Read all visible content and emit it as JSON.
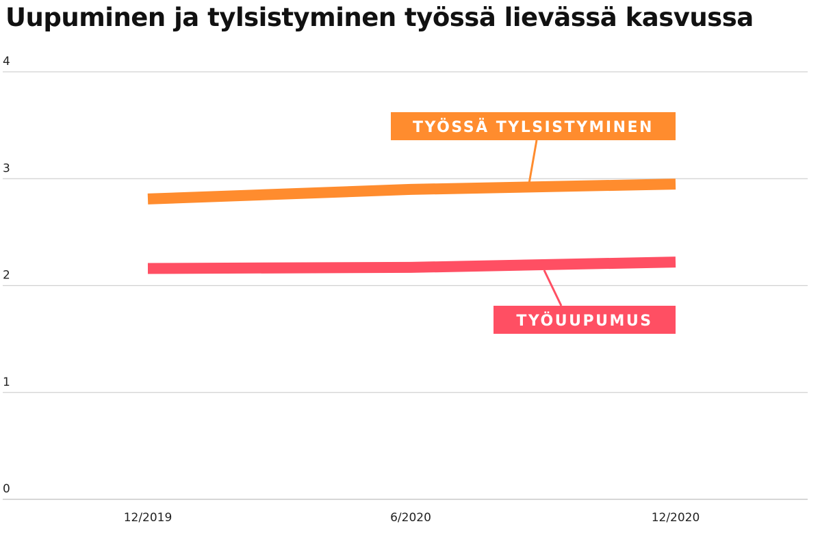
{
  "chart_data": {
    "type": "line",
    "title": "Uupuminen ja tylsistyminen työssä lievässä kasvussa",
    "xlabel": "",
    "ylabel": "",
    "categories": [
      "12/2019",
      "6/2020",
      "12/2020"
    ],
    "ylim": [
      0,
      4
    ],
    "yticks": [
      "0",
      "1",
      "2",
      "3",
      "4"
    ],
    "grid": true,
    "series": [
      {
        "name": "TYÖSSÄ TYLSISTYMINEN",
        "values": [
          2.81,
          2.9,
          2.95
        ],
        "color": "#FF8C2E"
      },
      {
        "name": "TYÖUUPUMUS",
        "values": [
          2.16,
          2.17,
          2.22
        ],
        "color": "#FF4F63"
      }
    ]
  }
}
